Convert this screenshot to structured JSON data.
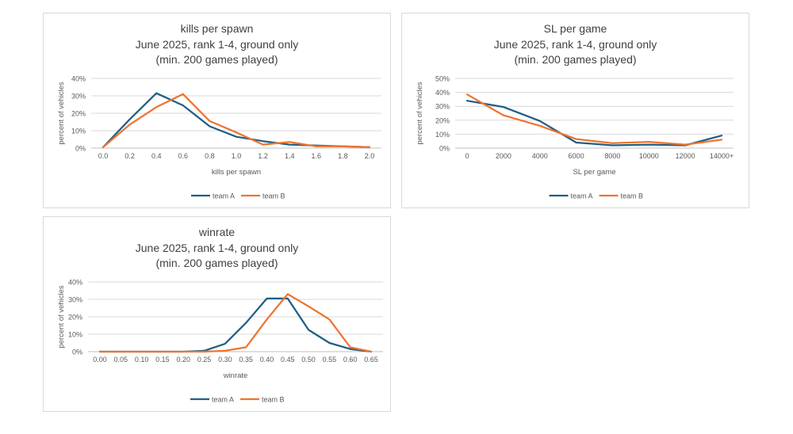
{
  "series_colors": {
    "team A": "#1f5f86",
    "team B": "#ee7430"
  },
  "chart_data": [
    {
      "type": "line",
      "title": [
        "kills per spawn",
        "June 2025, rank 1-4, ground only",
        "(min. 200 games played)"
      ],
      "xlabel": "kills per spawn",
      "ylabel": "percent of vehicles",
      "categories": [
        "0.0",
        "0.2",
        "0.4",
        "0.6",
        "0.8",
        "1.0",
        "1.2",
        "1.4",
        "1.6",
        "1.8",
        "2.0"
      ],
      "ylim": [
        0,
        40
      ],
      "yticks": [
        "0%",
        "10%",
        "20%",
        "30%",
        "40%"
      ],
      "grid": true,
      "legend": "bottom",
      "series": [
        {
          "name": "team A",
          "values": [
            0.5,
            16.5,
            31.5,
            24.5,
            12.5,
            6.5,
            4,
            2,
            1.5,
            1,
            0.5
          ]
        },
        {
          "name": "team B",
          "values": [
            0.5,
            13.5,
            23.5,
            31,
            15.5,
            9,
            2,
            3.5,
            1,
            1,
            0.5
          ]
        }
      ]
    },
    {
      "type": "line",
      "title": [
        "SL per game",
        "June 2025, rank 1-4, ground only",
        "(min. 200 games played)"
      ],
      "xlabel": "SL per game",
      "ylabel": "percent of vehicles",
      "categories": [
        "0",
        "2000",
        "4000",
        "6000",
        "8000",
        "10000",
        "12000",
        "14000+"
      ],
      "ylim": [
        0,
        50
      ],
      "yticks": [
        "0%",
        "10%",
        "20%",
        "30%",
        "40%",
        "50%"
      ],
      "grid": true,
      "legend": "bottom",
      "series": [
        {
          "name": "team A",
          "values": [
            34,
            29.5,
            19.5,
            4,
            2,
            2.5,
            2,
            9
          ]
        },
        {
          "name": "team B",
          "values": [
            38.5,
            23.5,
            16,
            6.5,
            3.5,
            4.5,
            2.5,
            6
          ]
        }
      ]
    },
    {
      "type": "line",
      "title": [
        "winrate",
        "June 2025, rank 1-4, ground only",
        "(min. 200 games played)"
      ],
      "xlabel": "winrate",
      "ylabel": "percent of vehicles",
      "categories": [
        "0.00",
        "0.05",
        "0.10",
        "0.15",
        "0.20",
        "0.25",
        "0.30",
        "0.35",
        "0.40",
        "0.45",
        "0.50",
        "0.55",
        "0.60",
        "0.65"
      ],
      "ylim": [
        0,
        40
      ],
      "yticks": [
        "0%",
        "10%",
        "20%",
        "30%",
        "40%"
      ],
      "grid": true,
      "legend": "bottom",
      "series": [
        {
          "name": "team A",
          "values": [
            0,
            0,
            0,
            0,
            0,
            0.5,
            4.5,
            16.5,
            30.5,
            30.5,
            12.5,
            5,
            1.5,
            0
          ]
        },
        {
          "name": "team B",
          "values": [
            0,
            0,
            0,
            0,
            0,
            0,
            0.5,
            2.5,
            18.5,
            33,
            26,
            18.5,
            2.5,
            0
          ]
        }
      ]
    }
  ]
}
